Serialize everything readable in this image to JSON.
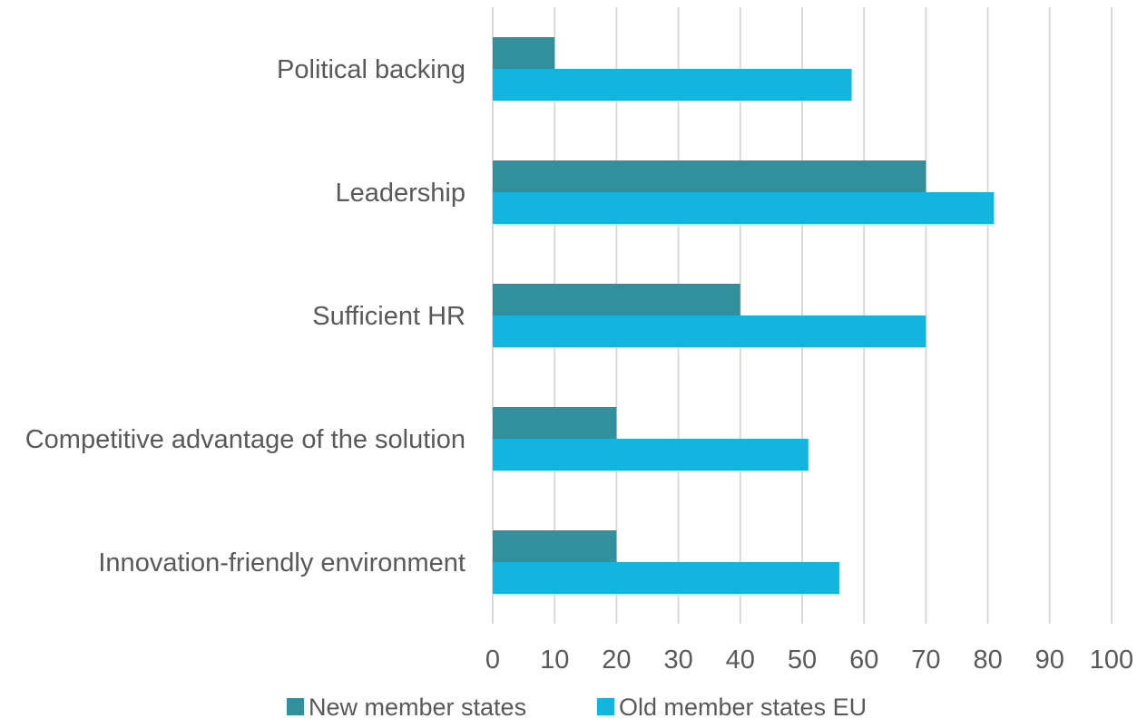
{
  "chart_data": {
    "type": "bar",
    "orientation": "horizontal",
    "categories": [
      "Political backing",
      "Leadership",
      "Sufficient HR",
      "Competitive advantage of the solution",
      "Innovation-friendly environment"
    ],
    "series": [
      {
        "name": "New member states",
        "color": "#31909b",
        "values": [
          10,
          70,
          40,
          20,
          20
        ]
      },
      {
        "name": "Old member states EU",
        "color": "#12b5de",
        "values": [
          58,
          81,
          70,
          51,
          56
        ]
      }
    ],
    "xlim": [
      0,
      100
    ],
    "xticks": [
      0,
      10,
      20,
      30,
      40,
      50,
      60,
      70,
      80,
      90,
      100
    ],
    "grid": true,
    "gridline_color": "#d9d9d9",
    "legend_position": "bottom",
    "title": "",
    "xlabel": "",
    "ylabel": ""
  }
}
